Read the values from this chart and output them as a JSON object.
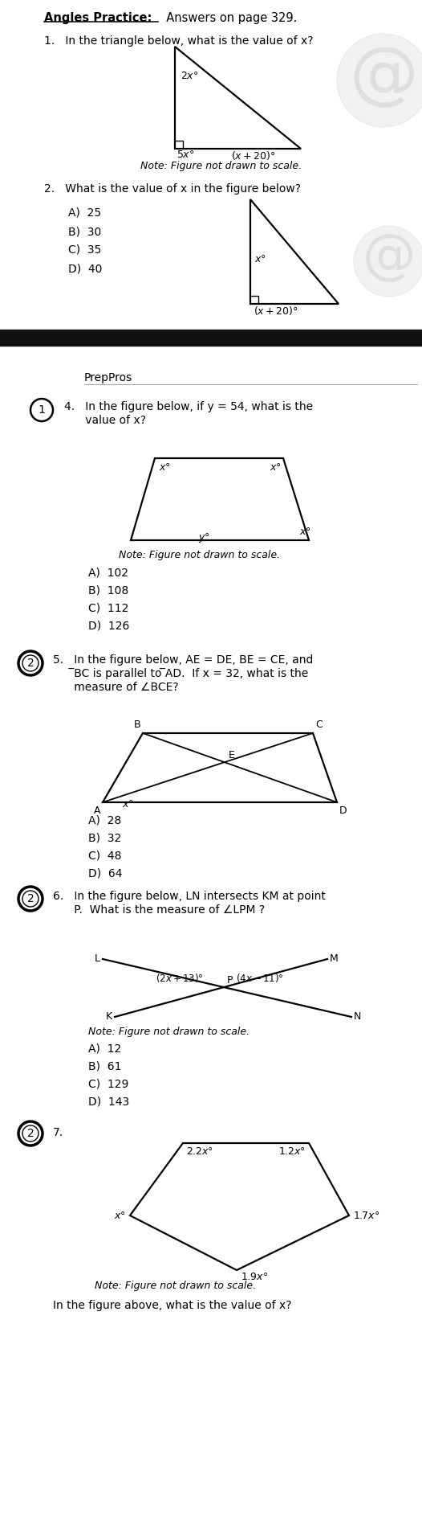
{
  "bg_color": "#ffffff",
  "title": "Angles Practice:",
  "title_suffix": "  Answers on page 329.",
  "q1_text": "1.   In the triangle below, what is the value of x?",
  "q1_note": "Note: Figure not drawn to scale.",
  "q2_text": "2.   What is the value of x in the figure below?",
  "q2_choices": [
    "A)  25",
    "B)  30",
    "C)  35",
    "D)  40"
  ],
  "preppros": "PrepPros",
  "q4_text_line1": "4.   In the figure below, if y = 54, what is the",
  "q4_text_line2": "      value of x?",
  "q4_note": "Note: Figure not drawn to scale.",
  "q4_choices": [
    "A)  102",
    "B)  108",
    "C)  112",
    "D)  126"
  ],
  "q5_text_line1": "5.   In the figure below, AE = DE, BE = CE, and",
  "q5_text_line2": "      ̅BC is parallel to ̅AD.  If x = 32, what is the",
  "q5_text_line3": "      measure of ∠BCE?",
  "q5_choices": [
    "A)  28",
    "B)  32",
    "C)  48",
    "D)  64"
  ],
  "q6_text_line1": "6.   In the figure below, LN intersects KM at point",
  "q6_text_line2": "      P.  What is the measure of ∠LPM ?",
  "q6_note": "Note: Figure not drawn to scale.",
  "q6_choices": [
    "A)  12",
    "B)  61",
    "C)  129",
    "D)  143"
  ],
  "q7_num": "7.",
  "q7_note": "Note: Figure not drawn to scale.",
  "q7_final": "In the figure above, what is the value of x?",
  "separator_color": "#111111",
  "light_gray": "#cccccc",
  "dark_gray": "#555555"
}
